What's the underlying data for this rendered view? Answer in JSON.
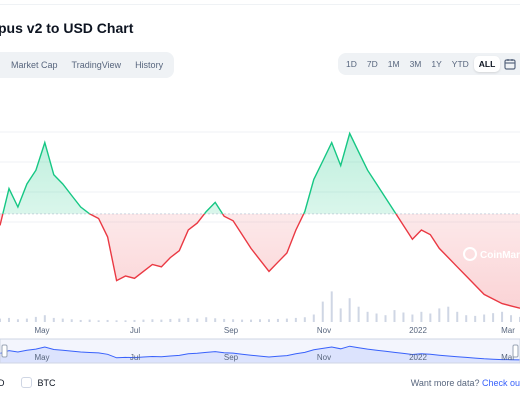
{
  "header": {
    "title": "pus v2 to USD Chart"
  },
  "tabs": [
    {
      "label": ""
    },
    {
      "label": "Market Cap"
    },
    {
      "label": "TradingView"
    },
    {
      "label": "History"
    }
  ],
  "ranges": [
    {
      "label": "1D",
      "active": false
    },
    {
      "label": "7D",
      "active": false
    },
    {
      "label": "1M",
      "active": false
    },
    {
      "label": "3M",
      "active": false
    },
    {
      "label": "1Y",
      "active": false
    },
    {
      "label": "YTD",
      "active": false
    },
    {
      "label": "ALL",
      "active": true
    }
  ],
  "icons": {
    "calendar": "calendar-icon",
    "watermark": "coinmarketcap-logo-icon"
  },
  "watermark_text": "CoinMar",
  "colors": {
    "up": "#16c784",
    "down": "#ea3943",
    "navigator": "#3861fb",
    "accent": "#3861fb"
  },
  "chart_data": {
    "type": "line",
    "x_ticks": [
      "May",
      "Jul",
      "Sep",
      "Nov",
      "2022",
      "Mar"
    ],
    "navigator_ticks": [
      "May",
      "Jul",
      "Sep",
      "Nov",
      "2022",
      "Mar"
    ],
    "y_ticks": [],
    "baseline_index": 10,
    "price_series": [
      0.42,
      0.58,
      0.5,
      0.6,
      0.66,
      0.78,
      0.64,
      0.6,
      0.55,
      0.5,
      0.47,
      0.45,
      0.37,
      0.18,
      0.2,
      0.19,
      0.22,
      0.25,
      0.24,
      0.28,
      0.31,
      0.4,
      0.43,
      0.48,
      0.52,
      0.46,
      0.44,
      0.38,
      0.32,
      0.27,
      0.22,
      0.26,
      0.3,
      0.4,
      0.48,
      0.62,
      0.7,
      0.78,
      0.68,
      0.82,
      0.74,
      0.66,
      0.6,
      0.54,
      0.48,
      0.42,
      0.36,
      0.4,
      0.38,
      0.32,
      0.28,
      0.24,
      0.2,
      0.16,
      0.12,
      0.1,
      0.08,
      0.07,
      0.06
    ],
    "volume_series": [
      0.1,
      0.12,
      0.08,
      0.1,
      0.15,
      0.2,
      0.12,
      0.1,
      0.08,
      0.06,
      0.07,
      0.05,
      0.06,
      0.05,
      0.05,
      0.06,
      0.07,
      0.08,
      0.07,
      0.09,
      0.1,
      0.12,
      0.1,
      0.14,
      0.11,
      0.09,
      0.08,
      0.07,
      0.07,
      0.08,
      0.08,
      0.09,
      0.1,
      0.12,
      0.14,
      0.22,
      0.6,
      0.9,
      0.4,
      0.7,
      0.45,
      0.3,
      0.25,
      0.2,
      0.35,
      0.28,
      0.22,
      0.3,
      0.25,
      0.4,
      0.45,
      0.3,
      0.2,
      0.18,
      0.22,
      0.26,
      0.3,
      0.2,
      0.15
    ]
  },
  "currency": {
    "usd_label": "D",
    "btc_label": "BTC"
  },
  "footer": {
    "text": "Want more data?",
    "link": "Check ou"
  }
}
